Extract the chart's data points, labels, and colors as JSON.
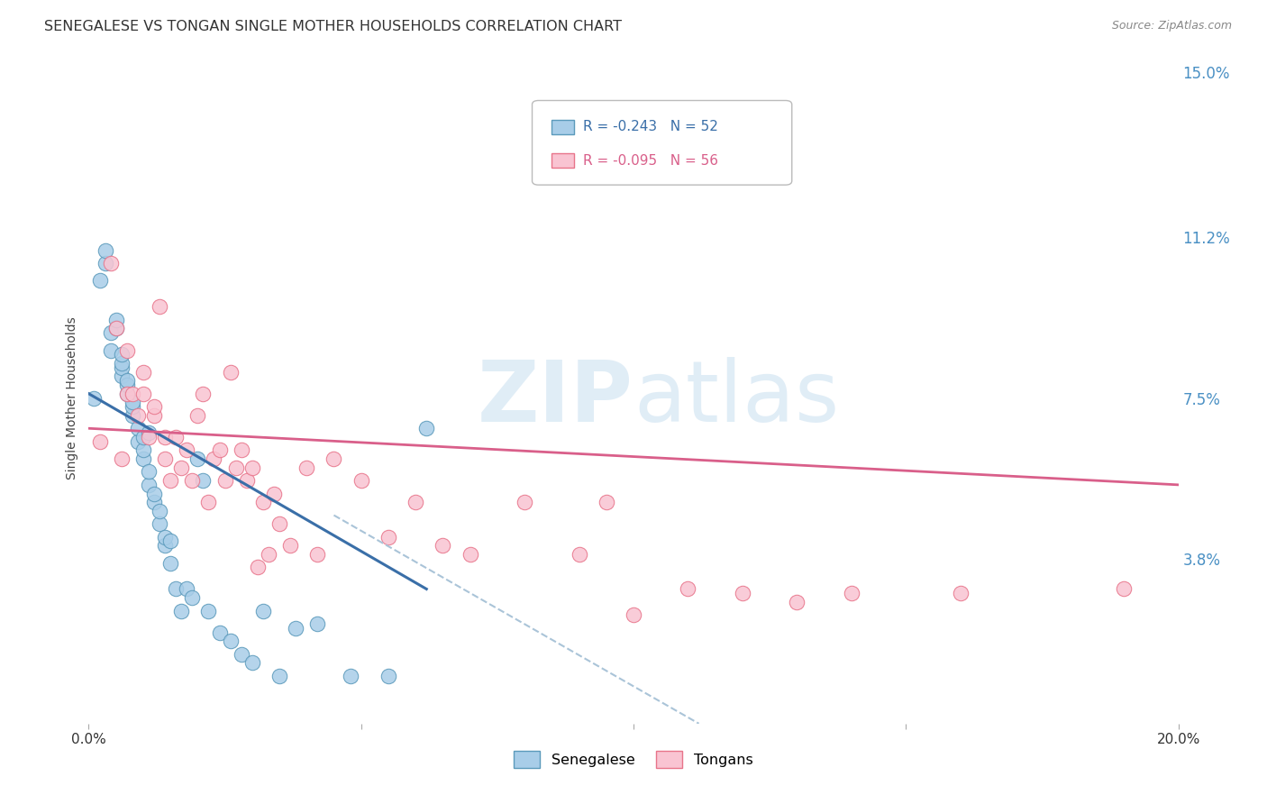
{
  "title": "SENEGALESE VS TONGAN SINGLE MOTHER HOUSEHOLDS CORRELATION CHART",
  "source": "Source: ZipAtlas.com",
  "ylabel": "Single Mother Households",
  "xlim": [
    0.0,
    0.2
  ],
  "ylim": [
    0.0,
    0.15
  ],
  "xticks": [
    0.0,
    0.05,
    0.1,
    0.15,
    0.2
  ],
  "xticklabels": [
    "0.0%",
    "",
    "",
    "",
    "20.0%"
  ],
  "ytick_positions": [
    0.038,
    0.075,
    0.112,
    0.15
  ],
  "ytick_labels": [
    "3.8%",
    "7.5%",
    "11.2%",
    "15.0%"
  ],
  "legend_r1": "R = -0.243   N = 52",
  "legend_r2": "R = -0.095   N = 56",
  "legend_label1": "Senegalese",
  "legend_label2": "Tongans",
  "color_blue_fill": "#a8cde8",
  "color_pink_fill": "#f9c4d2",
  "color_blue_edge": "#5b9abb",
  "color_pink_edge": "#e8748a",
  "color_blue_line": "#3a6fa8",
  "color_pink_line": "#d95f8a",
  "color_dashed": "#aac4d8",
  "watermark_color": "#d8eaf5",
  "title_fontsize": 11.5,
  "tick_fontsize": 11,
  "ytick_color": "#4a90c4",
  "senegalese_x": [
    0.001,
    0.002,
    0.003,
    0.003,
    0.004,
    0.004,
    0.005,
    0.005,
    0.006,
    0.006,
    0.006,
    0.006,
    0.007,
    0.007,
    0.007,
    0.008,
    0.008,
    0.008,
    0.009,
    0.009,
    0.01,
    0.01,
    0.01,
    0.011,
    0.011,
    0.011,
    0.012,
    0.012,
    0.013,
    0.013,
    0.014,
    0.014,
    0.015,
    0.015,
    0.016,
    0.017,
    0.018,
    0.019,
    0.02,
    0.021,
    0.022,
    0.024,
    0.026,
    0.028,
    0.03,
    0.032,
    0.035,
    0.038,
    0.042,
    0.048,
    0.055,
    0.062
  ],
  "senegalese_y": [
    0.075,
    0.102,
    0.106,
    0.109,
    0.086,
    0.09,
    0.091,
    0.093,
    0.08,
    0.082,
    0.083,
    0.085,
    0.076,
    0.078,
    0.079,
    0.071,
    0.073,
    0.074,
    0.065,
    0.068,
    0.061,
    0.063,
    0.066,
    0.055,
    0.058,
    0.067,
    0.051,
    0.053,
    0.046,
    0.049,
    0.041,
    0.043,
    0.037,
    0.042,
    0.031,
    0.026,
    0.031,
    0.029,
    0.061,
    0.056,
    0.026,
    0.021,
    0.019,
    0.016,
    0.014,
    0.026,
    0.011,
    0.022,
    0.023,
    0.011,
    0.011,
    0.068
  ],
  "tongans_x": [
    0.002,
    0.004,
    0.005,
    0.006,
    0.007,
    0.007,
    0.008,
    0.009,
    0.01,
    0.01,
    0.011,
    0.012,
    0.012,
    0.013,
    0.014,
    0.014,
    0.015,
    0.016,
    0.017,
    0.018,
    0.019,
    0.02,
    0.021,
    0.022,
    0.023,
    0.024,
    0.025,
    0.026,
    0.027,
    0.028,
    0.029,
    0.03,
    0.031,
    0.032,
    0.033,
    0.034,
    0.035,
    0.037,
    0.04,
    0.042,
    0.045,
    0.05,
    0.055,
    0.06,
    0.065,
    0.07,
    0.08,
    0.09,
    0.095,
    0.1,
    0.11,
    0.12,
    0.13,
    0.14,
    0.16,
    0.19
  ],
  "tongans_y": [
    0.065,
    0.106,
    0.091,
    0.061,
    0.076,
    0.086,
    0.076,
    0.071,
    0.076,
    0.081,
    0.066,
    0.071,
    0.073,
    0.096,
    0.061,
    0.066,
    0.056,
    0.066,
    0.059,
    0.063,
    0.056,
    0.071,
    0.076,
    0.051,
    0.061,
    0.063,
    0.056,
    0.081,
    0.059,
    0.063,
    0.056,
    0.059,
    0.036,
    0.051,
    0.039,
    0.053,
    0.046,
    0.041,
    0.059,
    0.039,
    0.061,
    0.056,
    0.043,
    0.051,
    0.041,
    0.039,
    0.051,
    0.039,
    0.051,
    0.025,
    0.031,
    0.03,
    0.028,
    0.03,
    0.03,
    0.031
  ],
  "blue_line_x": [
    0.0,
    0.062
  ],
  "blue_line_y": [
    0.076,
    0.031
  ],
  "pink_line_x": [
    0.0,
    0.2
  ],
  "pink_line_y": [
    0.068,
    0.055
  ],
  "dashed_line_x": [
    0.045,
    0.112
  ],
  "dashed_line_y": [
    0.048,
    0.0
  ]
}
